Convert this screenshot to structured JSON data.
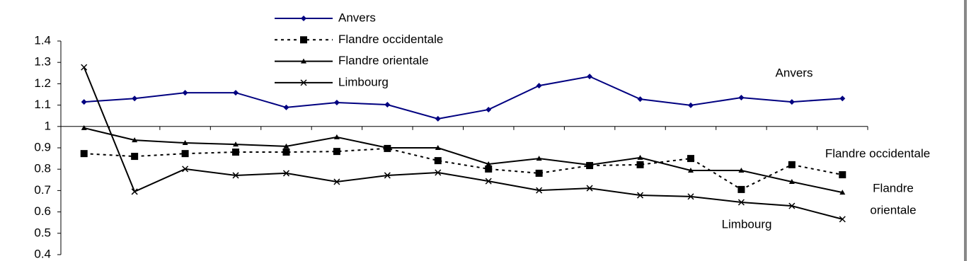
{
  "chart_data": {
    "type": "line",
    "categories": [
      null,
      null,
      null,
      null,
      null,
      null,
      null,
      null,
      null,
      null,
      null,
      null,
      null,
      null,
      null,
      null
    ],
    "series": [
      {
        "name": "Anvers",
        "color": "#000080",
        "marker": "diamond",
        "dash": false,
        "values": [
          1.115,
          1.131,
          1.158,
          1.158,
          1.089,
          1.112,
          1.102,
          1.036,
          1.079,
          1.191,
          1.234,
          1.128,
          1.099,
          1.135,
          1.115,
          1.131
        ]
      },
      {
        "name": "Flandre occidentale",
        "color": "#000000",
        "marker": "square",
        "dash": true,
        "values": [
          0.873,
          0.86,
          0.873,
          0.88,
          0.88,
          0.883,
          0.897,
          0.84,
          0.801,
          0.781,
          0.817,
          0.821,
          0.85,
          0.705,
          0.821,
          0.774
        ]
      },
      {
        "name": "Flandre orientale",
        "color": "#000000",
        "marker": "triangle",
        "dash": false,
        "values": [
          0.993,
          0.936,
          0.923,
          0.916,
          0.907,
          0.95,
          0.9,
          0.9,
          0.824,
          0.85,
          0.82,
          0.854,
          0.794,
          0.794,
          0.741,
          0.691
        ]
      },
      {
        "name": "Limbourg",
        "color": "#000000",
        "marker": "x",
        "dash": false,
        "values": [
          1.277,
          0.695,
          0.801,
          0.771,
          0.781,
          0.741,
          0.771,
          0.784,
          0.744,
          0.701,
          0.711,
          0.678,
          0.672,
          0.645,
          0.628,
          0.566
        ]
      }
    ],
    "ylim": [
      0.4,
      1.4
    ],
    "yticks": [
      0.4,
      0.5,
      0.6,
      0.7,
      0.8,
      0.9,
      1,
      1.1,
      1.2,
      1.3,
      1.4
    ],
    "x_axis_at": 1,
    "grid": false,
    "legend": "top",
    "annotations": [
      "Anvers",
      "Flandre occidentale",
      "Flandre",
      "orientale",
      "Limbourg"
    ]
  }
}
